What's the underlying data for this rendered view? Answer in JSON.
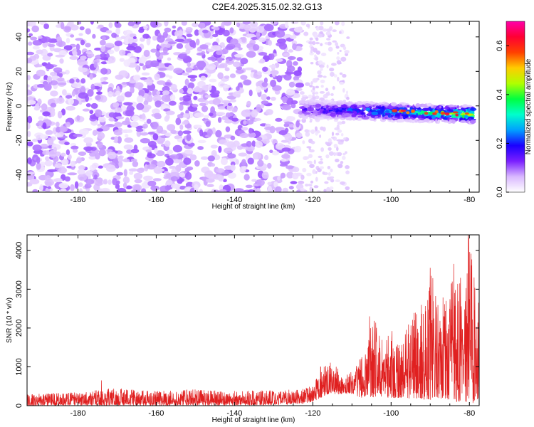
{
  "title": "C2E4.2025.315.02.32.G13",
  "chart_data": [
    {
      "type": "heatmap",
      "xlabel": "Height of straight line (km)",
      "ylabel": "Frequency (Hz)",
      "xlim": [
        -193,
        -77.5
      ],
      "ylim": [
        -50,
        49
      ],
      "xticks": [
        -180,
        -160,
        -140,
        -120,
        -100,
        -80
      ],
      "yticks": [
        -40,
        -20,
        0,
        20,
        40
      ],
      "xtick_labels": [
        "-180",
        "-160",
        "-140",
        "-120",
        "-100",
        "-80"
      ],
      "ytick_labels": [
        "-40",
        "-20",
        "0",
        "20",
        "40"
      ],
      "colorbar": {
        "label": "Normalized spectral amplitude",
        "range": [
          0,
          0.7
        ],
        "ticks": [
          0.0,
          0.2,
          0.4,
          0.6
        ],
        "tick_labels": [
          "0.0",
          "0.2",
          "0.4",
          "0.6"
        ],
        "colormap": [
          "#ffffff",
          "#d9b8ff",
          "#7a1fff",
          "#1a00ff",
          "#00a0ff",
          "#00ffcc",
          "#00ff40",
          "#b0ff00",
          "#ffcc00",
          "#ff4000",
          "#ff0033",
          "#ff00aa"
        ]
      },
      "features": {
        "noise_region": [
          -193,
          -123
        ],
        "sparse_region": [
          -123,
          -111
        ],
        "signal_band": {
          "x_range": [
            -123,
            -79
          ],
          "frequency_start": -2,
          "frequency_end": -5,
          "peak_amplitude": 0.65
        }
      }
    },
    {
      "type": "line",
      "xlabel": "Height of straight line (km)",
      "ylabel": "SNR (10 * v/v)",
      "xlim": [
        -193,
        -77.5
      ],
      "ylim": [
        0,
        4400
      ],
      "xticks": [
        -180,
        -160,
        -140,
        -120,
        -100,
        -80
      ],
      "yticks": [
        0,
        1000,
        2000,
        3000,
        4000
      ],
      "xtick_labels": [
        "-180",
        "-160",
        "-140",
        "-120",
        "-100",
        "-80"
      ],
      "ytick_labels": [
        "0",
        "1000",
        "2000",
        "3000",
        "4000"
      ],
      "color": "#e02020",
      "envelope": {
        "x": [
          -193,
          -180,
          -170,
          -160,
          -150,
          -140,
          -130,
          -125,
          -122,
          -120,
          -118,
          -116,
          -114,
          -112,
          -110,
          -108,
          -106,
          -105,
          -104,
          -102,
          -100,
          -98,
          -96,
          -94,
          -92,
          -90,
          -88,
          -86,
          -84,
          -82,
          -80,
          -79,
          -78,
          -77.5
        ],
        "min": [
          0,
          10,
          10,
          5,
          10,
          10,
          20,
          40,
          60,
          100,
          200,
          300,
          300,
          300,
          300,
          200,
          200,
          200,
          200,
          200,
          200,
          200,
          150,
          200,
          150,
          150,
          200,
          150,
          100,
          100,
          50,
          50,
          100,
          200
        ],
        "max": [
          300,
          350,
          450,
          380,
          420,
          380,
          400,
          420,
          450,
          520,
          900,
          1150,
          1000,
          800,
          900,
          1200,
          1500,
          2300,
          2200,
          1600,
          2000,
          1700,
          2000,
          2500,
          2800,
          3500,
          3000,
          2700,
          3600,
          3300,
          4400,
          3800,
          2200,
          3000
        ]
      },
      "spikes": [
        {
          "x": -174,
          "y": 650
        },
        {
          "x": -118,
          "y": 1000
        },
        {
          "x": -105.5,
          "y": 2300
        },
        {
          "x": -90,
          "y": 3550
        },
        {
          "x": -84,
          "y": 3650
        },
        {
          "x": -80.3,
          "y": 4400
        }
      ]
    }
  ]
}
